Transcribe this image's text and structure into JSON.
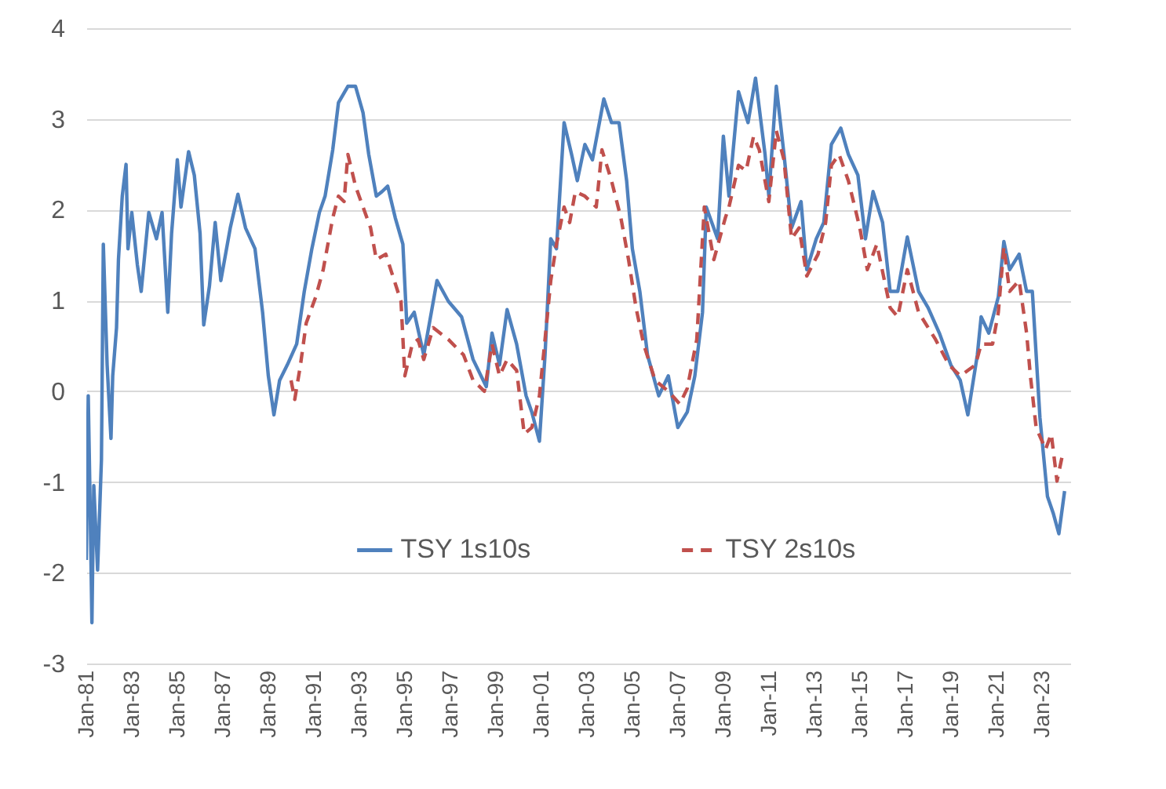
{
  "chart_data": {
    "type": "line",
    "xlim": [
      "1981-01",
      "2024-04"
    ],
    "ylim": [
      -3,
      4
    ],
    "yticks": [
      -3,
      -2,
      -1,
      0,
      1,
      2,
      3,
      4
    ],
    "xticks": [
      {
        "value": "1981-01",
        "label": "Jan-81"
      },
      {
        "value": "1983-01",
        "label": "Jan-83"
      },
      {
        "value": "1985-01",
        "label": "Jan-85"
      },
      {
        "value": "1987-01",
        "label": "Jan-87"
      },
      {
        "value": "1989-01",
        "label": "Jan-89"
      },
      {
        "value": "1991-01",
        "label": "Jan-91"
      },
      {
        "value": "1993-01",
        "label": "Jan-93"
      },
      {
        "value": "1995-01",
        "label": "Jan-95"
      },
      {
        "value": "1997-01",
        "label": "Jan-97"
      },
      {
        "value": "1999-01",
        "label": "Jan-99"
      },
      {
        "value": "2001-01",
        "label": "Jan-01"
      },
      {
        "value": "2003-01",
        "label": "Jan-03"
      },
      {
        "value": "2005-01",
        "label": "Jan-05"
      },
      {
        "value": "2007-01",
        "label": "Jan-07"
      },
      {
        "value": "2009-01",
        "label": "Jan-09"
      },
      {
        "value": "2011-01",
        "label": "Jan-11"
      },
      {
        "value": "2013-01",
        "label": "Jan-13"
      },
      {
        "value": "2015-01",
        "label": "Jan-15"
      },
      {
        "value": "2017-01",
        "label": "Jan-17"
      },
      {
        "value": "2019-01",
        "label": "Jan-19"
      },
      {
        "value": "2021-01",
        "label": "Jan-21"
      },
      {
        "value": "2023-01",
        "label": "Jan-23"
      }
    ],
    "grid": "y",
    "legend": "bottom",
    "series": [
      {
        "name": "TSY 1s10s",
        "color": "#4f81bd",
        "line_style": "solid",
        "x": [
          "1981-01",
          "1981-02",
          "1981-03",
          "1981-04",
          "1981-05",
          "1981-07",
          "1981-09",
          "1981-10",
          "1981-12",
          "1982-02",
          "1982-03",
          "1982-05",
          "1982-06",
          "1982-08",
          "1982-10",
          "1982-11",
          "1983-01",
          "1983-04",
          "1983-06",
          "1983-10",
          "1984-02",
          "1984-05",
          "1984-08",
          "1984-10",
          "1985-01",
          "1985-03",
          "1985-07",
          "1985-10",
          "1986-01",
          "1986-03",
          "1986-06",
          "1986-09",
          "1986-12",
          "1987-05",
          "1987-09",
          "1988-01",
          "1988-06",
          "1988-10",
          "1989-01",
          "1989-04",
          "1989-07",
          "1989-11",
          "1990-04",
          "1990-08",
          "1990-12",
          "1991-04",
          "1991-07",
          "1991-11",
          "1992-02",
          "1992-07",
          "1992-11",
          "1993-03",
          "1993-06",
          "1993-10",
          "1994-01",
          "1994-04",
          "1994-08",
          "1994-12",
          "1995-02",
          "1995-06",
          "1995-11",
          "1996-06",
          "1996-12",
          "1997-07",
          "1998-01",
          "1998-08",
          "1998-11",
          "1999-03",
          "1999-07",
          "1999-12",
          "2000-05",
          "2000-08",
          "2000-12",
          "2001-03",
          "2001-06",
          "2001-09",
          "2002-01",
          "2002-05",
          "2002-08",
          "2002-12",
          "2003-04",
          "2003-10",
          "2004-02",
          "2004-06",
          "2004-10",
          "2005-01",
          "2005-05",
          "2005-09",
          "2006-03",
          "2006-08",
          "2007-01",
          "2007-06",
          "2007-10",
          "2008-02",
          "2008-04",
          "2008-10",
          "2009-01",
          "2009-04",
          "2009-09",
          "2010-02",
          "2010-06",
          "2010-11",
          "2011-01",
          "2011-05",
          "2011-09",
          "2012-01",
          "2012-06",
          "2012-09",
          "2013-02",
          "2013-06",
          "2013-10",
          "2014-03",
          "2014-07",
          "2014-12",
          "2015-04",
          "2015-08",
          "2016-01",
          "2016-05",
          "2016-09",
          "2017-02",
          "2017-08",
          "2018-01",
          "2018-07",
          "2019-01",
          "2019-06",
          "2019-10",
          "2020-03",
          "2020-05",
          "2020-09",
          "2021-02",
          "2021-05",
          "2021-08",
          "2022-01",
          "2022-05",
          "2022-08",
          "2022-12",
          "2023-04",
          "2023-07",
          "2023-10",
          "2024-01"
        ],
        "values": [
          -1.86,
          -0.05,
          -1.16,
          -2.55,
          -1.04,
          -1.97,
          -0.75,
          1.62,
          0.29,
          -0.52,
          0.17,
          0.7,
          1.45,
          2.15,
          2.5,
          1.57,
          1.97,
          1.39,
          1.1,
          1.97,
          1.68,
          1.97,
          0.87,
          1.74,
          2.55,
          2.03,
          2.64,
          2.38,
          1.74,
          0.73,
          1.16,
          1.86,
          1.22,
          1.8,
          2.17,
          1.8,
          1.57,
          0.87,
          0.17,
          -0.26,
          0.12,
          0.29,
          0.52,
          1.1,
          1.57,
          1.97,
          2.15,
          2.66,
          3.18,
          3.36,
          3.36,
          3.07,
          2.61,
          2.15,
          2.2,
          2.26,
          1.91,
          1.62,
          0.75,
          0.87,
          0.4,
          1.22,
          0.99,
          0.82,
          0.35,
          0.05,
          0.64,
          0.29,
          0.9,
          0.52,
          -0.05,
          -0.23,
          -0.55,
          0.4,
          1.68,
          1.57,
          2.96,
          2.61,
          2.32,
          2.72,
          2.55,
          3.22,
          2.96,
          2.96,
          2.32,
          1.57,
          1.1,
          0.4,
          -0.05,
          0.17,
          -0.4,
          -0.23,
          0.17,
          0.87,
          2.03,
          1.68,
          2.81,
          2.15,
          3.3,
          2.96,
          3.45,
          2.61,
          2.15,
          3.36,
          2.61,
          1.8,
          2.09,
          1.34,
          1.68,
          1.86,
          2.72,
          2.9,
          2.61,
          2.38,
          1.68,
          2.2,
          1.86,
          1.1,
          1.1,
          1.7,
          1.1,
          0.92,
          0.64,
          0.29,
          0.12,
          -0.26,
          0.4,
          0.82,
          0.64,
          1.04,
          1.65,
          1.34,
          1.51,
          1.1,
          1.1,
          -0.29,
          -1.16,
          -1.34,
          -1.57,
          -1.1
        ]
      },
      {
        "name": "TSY 2s10s",
        "color": "#c0504d",
        "line_style": "dashed",
        "x": [
          "1990-01",
          "1990-03",
          "1990-06",
          "1990-09",
          "1991-02",
          "1991-06",
          "1991-11",
          "1992-02",
          "1992-05",
          "1992-07",
          "1992-11",
          "1993-03",
          "1993-07",
          "1993-10",
          "1994-03",
          "1994-11",
          "1995-01",
          "1995-05",
          "1995-08",
          "1995-11",
          "1996-04",
          "1996-12",
          "1997-08",
          "1998-01",
          "1998-07",
          "1998-11",
          "1999-03",
          "1999-07",
          "1999-12",
          "2000-04",
          "2000-08",
          "2000-12",
          "2001-03",
          "2001-06",
          "2001-09",
          "2002-01",
          "2002-04",
          "2002-07",
          "2002-12",
          "2003-06",
          "2003-09",
          "2004-02",
          "2004-07",
          "2004-11",
          "2005-03",
          "2005-07",
          "2006-01",
          "2006-08",
          "2007-02",
          "2007-06",
          "2007-11",
          "2008-03",
          "2008-08",
          "2009-02",
          "2009-04",
          "2009-09",
          "2010-01",
          "2010-05",
          "2010-08",
          "2011-01",
          "2011-05",
          "2011-09",
          "2012-01",
          "2012-05",
          "2012-09",
          "2013-03",
          "2013-07",
          "2013-10",
          "2014-02",
          "2014-07",
          "2015-01",
          "2015-05",
          "2015-10",
          "2016-05",
          "2016-09",
          "2017-02",
          "2017-08",
          "2018-05",
          "2018-12",
          "2019-06",
          "2019-10",
          "2020-02",
          "2020-05",
          "2020-11",
          "2021-02",
          "2021-05",
          "2021-08",
          "2022-01",
          "2022-05",
          "2022-07",
          "2022-10",
          "2023-03",
          "2023-06",
          "2023-09",
          "2023-12"
        ],
        "values": [
          0.12,
          -0.09,
          0.29,
          0.75,
          1.04,
          1.34,
          1.91,
          2.15,
          2.09,
          2.61,
          2.26,
          2.03,
          1.8,
          1.45,
          1.51,
          0.99,
          0.17,
          0.52,
          0.57,
          0.35,
          0.7,
          0.57,
          0.4,
          0.12,
          0.0,
          0.52,
          0.17,
          0.35,
          0.23,
          -0.47,
          -0.4,
          -0.05,
          0.57,
          1.22,
          1.62,
          2.03,
          1.86,
          2.2,
          2.15,
          2.03,
          2.66,
          2.32,
          1.91,
          1.45,
          0.92,
          0.52,
          0.12,
          0.0,
          -0.14,
          0.03,
          0.57,
          2.03,
          1.45,
          1.91,
          2.03,
          2.49,
          2.43,
          2.81,
          2.66,
          2.09,
          2.87,
          2.55,
          1.68,
          1.8,
          1.27,
          1.51,
          1.86,
          2.49,
          2.61,
          2.32,
          1.8,
          1.34,
          1.62,
          0.92,
          0.82,
          1.34,
          0.87,
          0.57,
          0.29,
          0.17,
          0.23,
          0.29,
          0.52,
          0.52,
          0.87,
          1.59,
          1.1,
          1.22,
          0.64,
          0.17,
          -0.4,
          -0.64,
          -0.47,
          -0.99,
          -0.69
        ]
      }
    ]
  }
}
